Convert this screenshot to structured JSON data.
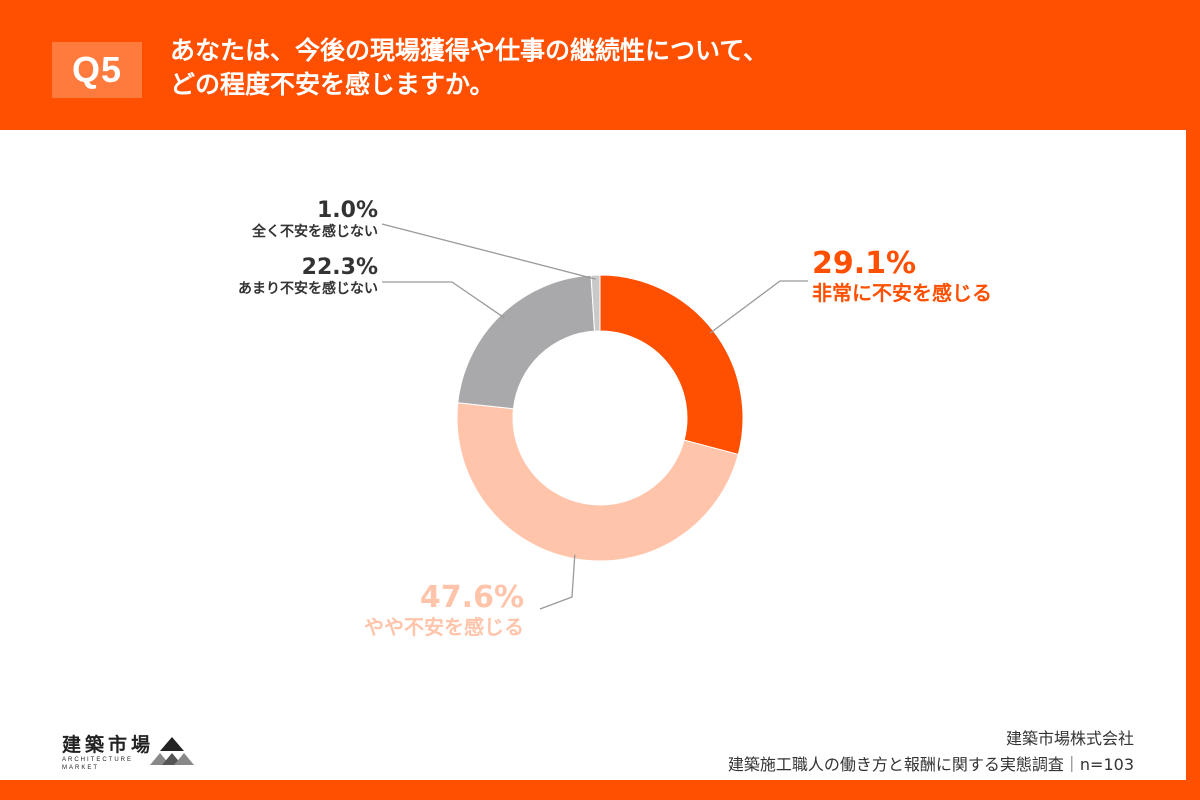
{
  "header": {
    "badge": "Q5",
    "question_line1": "あなたは、今後の現場獲得や仕事の継続性について、",
    "question_line2": "どの程度不安を感じますか。"
  },
  "colors": {
    "brand": "#ff4f00",
    "very_anxious": "#ff4f00",
    "somewhat_anxious": "#ffc4aa",
    "not_very_anxious": "#a9a8ab",
    "not_at_all": "#c9c9c9",
    "dark_text": "#333333"
  },
  "chart_data": {
    "type": "donut",
    "slices": [
      {
        "label": "非常に不安を感じる",
        "value": 29.1,
        "value_label": "29.1%"
      },
      {
        "label": "やや不安を感じる",
        "value": 47.6,
        "value_label": "47.6%"
      },
      {
        "label": "あまり不安を感じない",
        "value": 22.3,
        "value_label": "22.3%"
      },
      {
        "label": "全く不安を感じない",
        "value": 1.0,
        "value_label": "1.0%"
      }
    ]
  },
  "footer": {
    "company": "建築市場株式会社",
    "survey": "建築施工職人の働き方と報酬に関する実態調査｜n=103",
    "logo_name": "建築市場",
    "logo_sub_line1": "ARCHITECTURE",
    "logo_sub_line2": "MARKET"
  }
}
